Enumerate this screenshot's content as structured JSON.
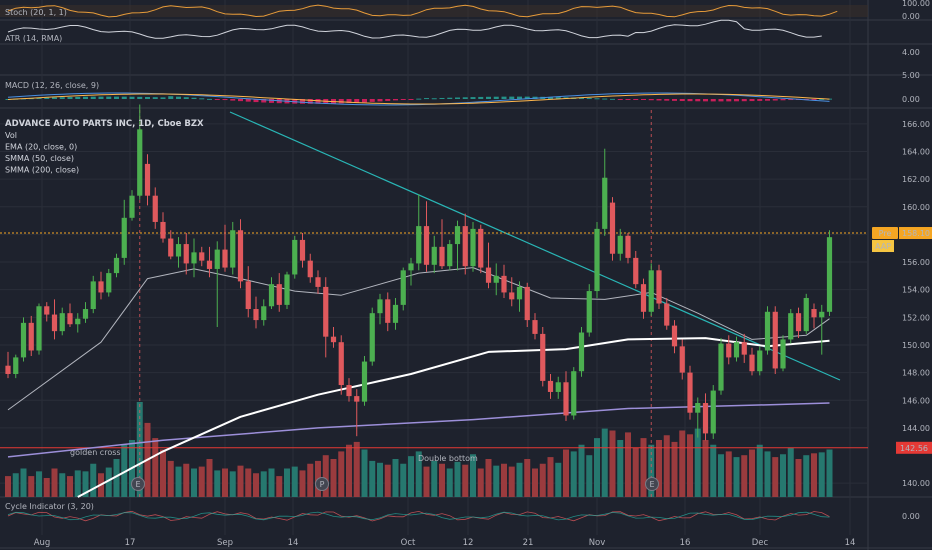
{
  "chart_data": {
    "type": "candlestick",
    "title": "ADVANCE AUTO PARTS INC, 1D, Cboe BZX",
    "legend": [
      "Vol",
      "EMA (20, close, 0)",
      "SMMA (50, close)",
      "SMMA (200, close)"
    ],
    "symbol_tag": "AAP",
    "pre_label": "Pre",
    "last_price": "158.10",
    "level_price": "142.56",
    "annotations": [
      "golden cross",
      "Double bottom"
    ],
    "event_markers": [
      "E",
      "P",
      "E"
    ],
    "x_ticks": [
      "Aug",
      "17",
      "Sep",
      "14",
      "Oct",
      "12",
      "21",
      "Nov",
      "16",
      "Dec",
      "14"
    ],
    "y_ticks": [
      "166.00",
      "164.00",
      "162.00",
      "160.00",
      "158.00",
      "156.00",
      "154.00",
      "152.00",
      "150.00",
      "148.00",
      "146.00",
      "144.00",
      "140.00"
    ],
    "ylim": [
      139,
      167
    ],
    "candles": [
      {
        "o": 148.5,
        "h": 149.5,
        "l": 147.6,
        "c": 147.9
      },
      {
        "o": 147.9,
        "h": 149.3,
        "l": 147.6,
        "c": 149.1
      },
      {
        "o": 149.1,
        "h": 152.0,
        "l": 148.8,
        "c": 151.6
      },
      {
        "o": 151.6,
        "h": 152.1,
        "l": 149.2,
        "c": 149.6
      },
      {
        "o": 149.6,
        "h": 153.0,
        "l": 149.3,
        "c": 152.8
      },
      {
        "o": 152.8,
        "h": 153.1,
        "l": 151.7,
        "c": 152.2
      },
      {
        "o": 152.2,
        "h": 153.3,
        "l": 150.4,
        "c": 151.0
      },
      {
        "o": 151.0,
        "h": 152.7,
        "l": 150.7,
        "c": 152.3
      },
      {
        "o": 152.3,
        "h": 153.0,
        "l": 151.3,
        "c": 151.5
      },
      {
        "o": 151.5,
        "h": 152.3,
        "l": 150.9,
        "c": 151.9
      },
      {
        "o": 151.9,
        "h": 153.1,
        "l": 151.6,
        "c": 152.6
      },
      {
        "o": 152.6,
        "h": 155.0,
        "l": 152.3,
        "c": 154.6
      },
      {
        "o": 154.6,
        "h": 155.3,
        "l": 153.3,
        "c": 153.8
      },
      {
        "o": 153.8,
        "h": 155.5,
        "l": 153.5,
        "c": 155.2
      },
      {
        "o": 155.2,
        "h": 156.6,
        "l": 154.9,
        "c": 156.3
      },
      {
        "o": 156.3,
        "h": 160.5,
        "l": 155.8,
        "c": 159.2
      },
      {
        "o": 159.2,
        "h": 161.2,
        "l": 159.0,
        "c": 160.8
      },
      {
        "o": 160.8,
        "h": 167.4,
        "l": 160.5,
        "c": 165.6
      },
      {
        "o": 163.1,
        "h": 163.8,
        "l": 160.1,
        "c": 160.8
      },
      {
        "o": 160.8,
        "h": 161.4,
        "l": 158.4,
        "c": 158.9
      },
      {
        "o": 158.9,
        "h": 159.6,
        "l": 157.4,
        "c": 157.7
      },
      {
        "o": 157.7,
        "h": 158.3,
        "l": 156.2,
        "c": 156.4
      },
      {
        "o": 156.4,
        "h": 157.8,
        "l": 155.6,
        "c": 157.3
      },
      {
        "o": 157.3,
        "h": 158.1,
        "l": 155.1,
        "c": 155.9
      },
      {
        "o": 155.9,
        "h": 157.7,
        "l": 154.9,
        "c": 156.7
      },
      {
        "o": 156.7,
        "h": 157.1,
        "l": 155.7,
        "c": 156.1
      },
      {
        "o": 156.1,
        "h": 157.1,
        "l": 154.9,
        "c": 155.5
      },
      {
        "o": 155.5,
        "h": 157.5,
        "l": 151.3,
        "c": 156.9
      },
      {
        "o": 156.9,
        "h": 158.7,
        "l": 155.3,
        "c": 155.6
      },
      {
        "o": 155.6,
        "h": 158.9,
        "l": 155.1,
        "c": 158.3
      },
      {
        "o": 158.3,
        "h": 159.1,
        "l": 154.1,
        "c": 154.6
      },
      {
        "o": 154.6,
        "h": 155.7,
        "l": 152.0,
        "c": 152.6
      },
      {
        "o": 152.6,
        "h": 153.5,
        "l": 151.2,
        "c": 151.8
      },
      {
        "o": 151.8,
        "h": 153.3,
        "l": 151.4,
        "c": 152.8
      },
      {
        "o": 152.8,
        "h": 154.9,
        "l": 152.6,
        "c": 154.4
      },
      {
        "o": 154.4,
        "h": 155.2,
        "l": 152.4,
        "c": 152.9
      },
      {
        "o": 152.9,
        "h": 155.3,
        "l": 152.6,
        "c": 155.1
      },
      {
        "o": 155.1,
        "h": 157.9,
        "l": 154.8,
        "c": 157.6
      },
      {
        "o": 157.6,
        "h": 158.1,
        "l": 155.6,
        "c": 156.1
      },
      {
        "o": 156.1,
        "h": 156.6,
        "l": 154.5,
        "c": 154.9
      },
      {
        "o": 154.9,
        "h": 155.4,
        "l": 153.7,
        "c": 154.2
      },
      {
        "o": 154.2,
        "h": 154.9,
        "l": 149.1,
        "c": 150.6
      },
      {
        "o": 150.6,
        "h": 151.3,
        "l": 149.8,
        "c": 150.2
      },
      {
        "o": 150.2,
        "h": 150.7,
        "l": 146.4,
        "c": 147.1
      },
      {
        "o": 147.1,
        "h": 147.6,
        "l": 145.9,
        "c": 146.3
      },
      {
        "o": 146.3,
        "h": 146.8,
        "l": 143.4,
        "c": 145.9
      },
      {
        "o": 145.9,
        "h": 149.2,
        "l": 145.6,
        "c": 148.8
      },
      {
        "o": 148.8,
        "h": 152.7,
        "l": 148.5,
        "c": 152.3
      },
      {
        "o": 152.3,
        "h": 153.7,
        "l": 151.5,
        "c": 153.3
      },
      {
        "o": 153.3,
        "h": 153.8,
        "l": 151.0,
        "c": 151.6
      },
      {
        "o": 151.6,
        "h": 153.4,
        "l": 151.1,
        "c": 152.9
      },
      {
        "o": 152.9,
        "h": 155.6,
        "l": 152.5,
        "c": 155.4
      },
      {
        "o": 155.4,
        "h": 156.3,
        "l": 154.3,
        "c": 155.9
      },
      {
        "o": 155.9,
        "h": 160.9,
        "l": 155.4,
        "c": 158.6
      },
      {
        "o": 158.6,
        "h": 160.4,
        "l": 155.3,
        "c": 155.8
      },
      {
        "o": 155.8,
        "h": 157.9,
        "l": 155.2,
        "c": 157.1
      },
      {
        "o": 157.1,
        "h": 159.1,
        "l": 155.5,
        "c": 155.7
      },
      {
        "o": 155.7,
        "h": 157.6,
        "l": 155.4,
        "c": 157.3
      },
      {
        "o": 157.3,
        "h": 159.0,
        "l": 155.4,
        "c": 158.6
      },
      {
        "o": 158.6,
        "h": 159.5,
        "l": 155.1,
        "c": 155.7
      },
      {
        "o": 155.7,
        "h": 158.9,
        "l": 155.3,
        "c": 158.4
      },
      {
        "o": 158.4,
        "h": 158.7,
        "l": 155.2,
        "c": 155.6
      },
      {
        "o": 155.6,
        "h": 157.4,
        "l": 154.1,
        "c": 154.5
      },
      {
        "o": 154.5,
        "h": 155.9,
        "l": 153.6,
        "c": 155.0
      },
      {
        "o": 155.0,
        "h": 155.8,
        "l": 153.4,
        "c": 153.8
      },
      {
        "o": 153.8,
        "h": 154.9,
        "l": 152.8,
        "c": 153.3
      },
      {
        "o": 153.3,
        "h": 154.6,
        "l": 152.4,
        "c": 154.2
      },
      {
        "o": 154.2,
        "h": 154.5,
        "l": 151.3,
        "c": 151.8
      },
      {
        "o": 151.8,
        "h": 152.3,
        "l": 150.4,
        "c": 150.8
      },
      {
        "o": 150.8,
        "h": 151.3,
        "l": 147.0,
        "c": 147.4
      },
      {
        "o": 147.4,
        "h": 147.9,
        "l": 146.1,
        "c": 146.6
      },
      {
        "o": 146.6,
        "h": 147.7,
        "l": 146.1,
        "c": 147.3
      },
      {
        "o": 147.3,
        "h": 148.1,
        "l": 144.5,
        "c": 144.9
      },
      {
        "o": 144.9,
        "h": 148.4,
        "l": 144.6,
        "c": 148.1
      },
      {
        "o": 148.1,
        "h": 151.3,
        "l": 147.7,
        "c": 150.9
      },
      {
        "o": 150.9,
        "h": 154.4,
        "l": 150.6,
        "c": 153.9
      },
      {
        "o": 153.9,
        "h": 158.9,
        "l": 153.4,
        "c": 158.4
      },
      {
        "o": 158.4,
        "h": 164.2,
        "l": 157.9,
        "c": 162.1
      },
      {
        "o": 160.3,
        "h": 160.7,
        "l": 156.1,
        "c": 156.6
      },
      {
        "o": 156.6,
        "h": 158.4,
        "l": 156.1,
        "c": 157.9
      },
      {
        "o": 157.9,
        "h": 158.1,
        "l": 155.9,
        "c": 156.3
      },
      {
        "o": 156.3,
        "h": 156.8,
        "l": 154.1,
        "c": 154.4
      },
      {
        "o": 154.4,
        "h": 154.8,
        "l": 151.9,
        "c": 152.4
      },
      {
        "o": 152.4,
        "h": 155.9,
        "l": 152.1,
        "c": 155.4
      },
      {
        "o": 155.4,
        "h": 155.8,
        "l": 152.6,
        "c": 153.0
      },
      {
        "o": 153.0,
        "h": 153.4,
        "l": 151.1,
        "c": 151.4
      },
      {
        "o": 151.4,
        "h": 151.8,
        "l": 149.4,
        "c": 149.9
      },
      {
        "o": 149.9,
        "h": 150.4,
        "l": 147.5,
        "c": 148.0
      },
      {
        "o": 148.0,
        "h": 148.5,
        "l": 144.6,
        "c": 145.1
      },
      {
        "o": 145.1,
        "h": 146.2,
        "l": 143.3,
        "c": 145.8
      },
      {
        "o": 145.8,
        "h": 146.5,
        "l": 143.1,
        "c": 143.6
      },
      {
        "o": 143.6,
        "h": 147.1,
        "l": 143.2,
        "c": 146.7
      },
      {
        "o": 146.7,
        "h": 150.5,
        "l": 146.4,
        "c": 150.1
      },
      {
        "o": 150.1,
        "h": 150.7,
        "l": 148.6,
        "c": 149.1
      },
      {
        "o": 149.1,
        "h": 150.6,
        "l": 148.8,
        "c": 150.2
      },
      {
        "o": 150.2,
        "h": 150.8,
        "l": 148.7,
        "c": 149.3
      },
      {
        "o": 149.3,
        "h": 149.8,
        "l": 147.8,
        "c": 148.1
      },
      {
        "o": 148.1,
        "h": 149.9,
        "l": 147.8,
        "c": 149.6
      },
      {
        "o": 149.6,
        "h": 152.8,
        "l": 149.3,
        "c": 152.4
      },
      {
        "o": 152.4,
        "h": 152.8,
        "l": 147.9,
        "c": 148.3
      },
      {
        "o": 148.3,
        "h": 150.7,
        "l": 148.1,
        "c": 150.4
      },
      {
        "o": 150.4,
        "h": 152.6,
        "l": 150.1,
        "c": 152.3
      },
      {
        "o": 152.3,
        "h": 152.7,
        "l": 150.5,
        "c": 151.0
      },
      {
        "o": 151.0,
        "h": 153.7,
        "l": 150.8,
        "c": 153.4
      },
      {
        "o": 152.6,
        "h": 153.0,
        "l": 151.2,
        "c": 152.0
      },
      {
        "o": 152.0,
        "h": 152.9,
        "l": 149.3,
        "c": 152.4
      },
      {
        "o": 152.4,
        "h": 158.3,
        "l": 152.1,
        "c": 157.8
      }
    ],
    "ema20": [
      [
        0,
        145.3
      ],
      [
        12,
        150.2
      ],
      [
        18,
        154.8
      ],
      [
        24,
        155.5
      ],
      [
        30,
        154.8
      ],
      [
        37,
        153.9
      ],
      [
        43,
        153.6
      ],
      [
        53,
        155.2
      ],
      [
        60,
        155.6
      ],
      [
        70,
        153.4
      ],
      [
        77,
        153.3
      ],
      [
        83,
        153.8
      ],
      [
        89,
        152.3
      ],
      [
        96,
        150.4
      ],
      [
        103,
        150.7
      ],
      [
        106,
        151.9
      ]
    ],
    "smma50": [
      [
        9,
        139.0
      ],
      [
        20,
        142.3
      ],
      [
        30,
        144.8
      ],
      [
        40,
        146.4
      ],
      [
        52,
        147.9
      ],
      [
        62,
        149.5
      ],
      [
        72,
        149.7
      ],
      [
        80,
        150.4
      ],
      [
        90,
        150.5
      ],
      [
        98,
        149.9
      ],
      [
        106,
        150.3
      ]
    ],
    "smma200": [
      [
        0,
        141.9
      ],
      [
        20,
        143.1
      ],
      [
        40,
        144.0
      ],
      [
        60,
        144.6
      ],
      [
        80,
        145.4
      ],
      [
        100,
        145.7
      ],
      [
        106,
        145.8
      ]
    ],
    "volume": [
      0.22,
      0.25,
      0.3,
      0.22,
      0.27,
      0.2,
      0.3,
      0.25,
      0.22,
      0.28,
      0.27,
      0.35,
      0.25,
      0.31,
      0.4,
      0.55,
      0.6,
      1.0,
      0.78,
      0.62,
      0.5,
      0.38,
      0.32,
      0.35,
      0.3,
      0.32,
      0.4,
      0.28,
      0.3,
      0.27,
      0.33,
      0.3,
      0.25,
      0.27,
      0.3,
      0.22,
      0.3,
      0.32,
      0.28,
      0.35,
      0.38,
      0.44,
      0.4,
      0.48,
      0.55,
      0.58,
      0.5,
      0.38,
      0.36,
      0.34,
      0.4,
      0.35,
      0.43,
      0.48,
      0.32,
      0.38,
      0.35,
      0.3,
      0.37,
      0.34,
      0.45,
      0.3,
      0.4,
      0.33,
      0.35,
      0.32,
      0.36,
      0.4,
      0.3,
      0.35,
      0.42,
      0.36,
      0.5,
      0.48,
      0.55,
      0.44,
      0.62,
      0.72,
      0.7,
      0.6,
      0.68,
      0.52,
      0.62,
      0.55,
      0.6,
      0.65,
      0.58,
      0.7,
      0.66,
      0.72,
      0.6,
      0.55,
      0.45,
      0.48,
      0.42,
      0.44,
      0.5,
      0.55,
      0.48,
      0.42,
      0.45,
      0.52,
      0.4,
      0.44,
      0.46,
      0.47,
      0.5
    ],
    "subpanes": [
      {
        "label": "Stoch (20, 1, 1)",
        "ticks": [
          "100.00",
          "0.00"
        ]
      },
      {
        "label": "ATR (14, RMA)",
        "ticks": [
          "4.00"
        ]
      },
      {
        "label": "MACD (12, 26, close, 9)",
        "ticks": [
          "5.00",
          "0.00"
        ]
      },
      {
        "label": "Cycle Indicator (3, 20)",
        "ticks": [
          "0.00"
        ]
      }
    ]
  },
  "colors": {
    "background": "#1e222d",
    "up": "#4caf50",
    "down": "#e0595d",
    "vol_up": "#26786f",
    "vol_down": "#9a3b3e",
    "ema": "#b2b5be",
    "smma50": "#ffffff",
    "smma200": "#9c8fd9",
    "trend": "#29b6b6",
    "level": "#e53935",
    "price_tag": "#f5a623",
    "stoch": "#e69b3a",
    "text": "#b2b5be"
  }
}
